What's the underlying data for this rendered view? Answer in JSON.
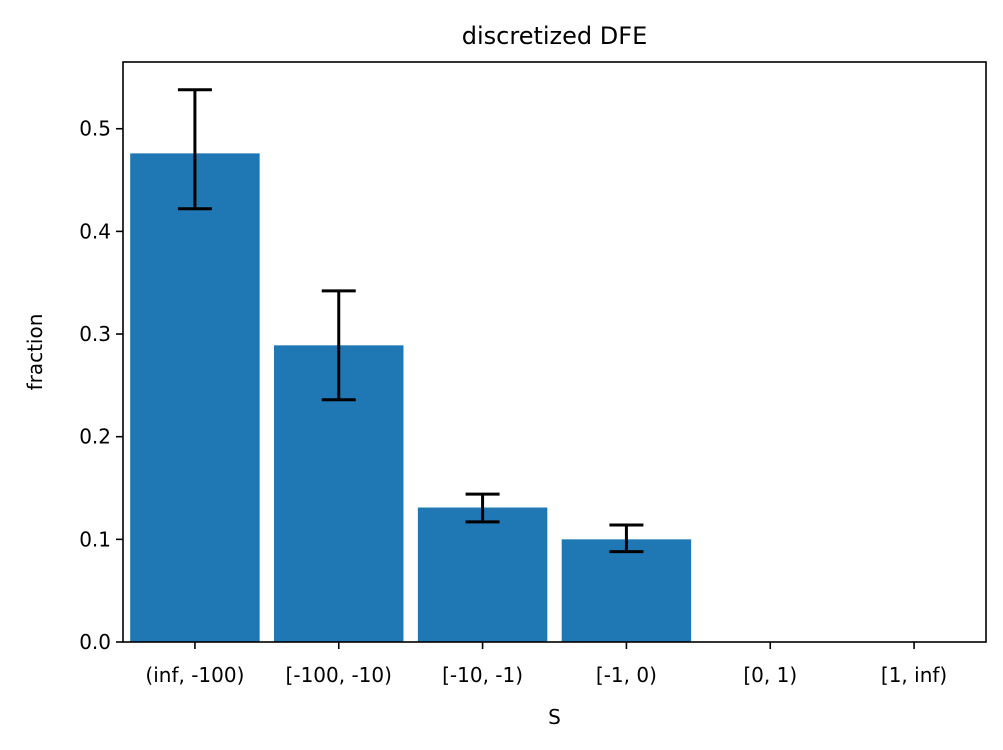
{
  "chart_data": {
    "type": "bar",
    "title": "discretized DFE",
    "xlabel": "S",
    "ylabel": "fraction",
    "categories": [
      "(inf, -100)",
      "[-100, -10)",
      "[-10, -1)",
      "[-1, 0)",
      "[0, 1)",
      "[1, inf)"
    ],
    "values": [
      0.476,
      0.289,
      0.131,
      0.1,
      0.0,
      0.0
    ],
    "error_bars": [
      {
        "low": 0.422,
        "high": 0.538
      },
      {
        "low": 0.236,
        "high": 0.342
      },
      {
        "low": 0.117,
        "high": 0.144
      },
      {
        "low": 0.088,
        "high": 0.114
      },
      null,
      null
    ],
    "ylim": [
      0,
      0.565
    ],
    "yticks": [
      "0.0",
      "0.1",
      "0.2",
      "0.3",
      "0.4",
      "0.5"
    ],
    "ytick_values": [
      0.0,
      0.1,
      0.2,
      0.3,
      0.4,
      0.5
    ],
    "bar_color": "#1f77b4",
    "errorbar_color": "#000000",
    "grid": false
  }
}
